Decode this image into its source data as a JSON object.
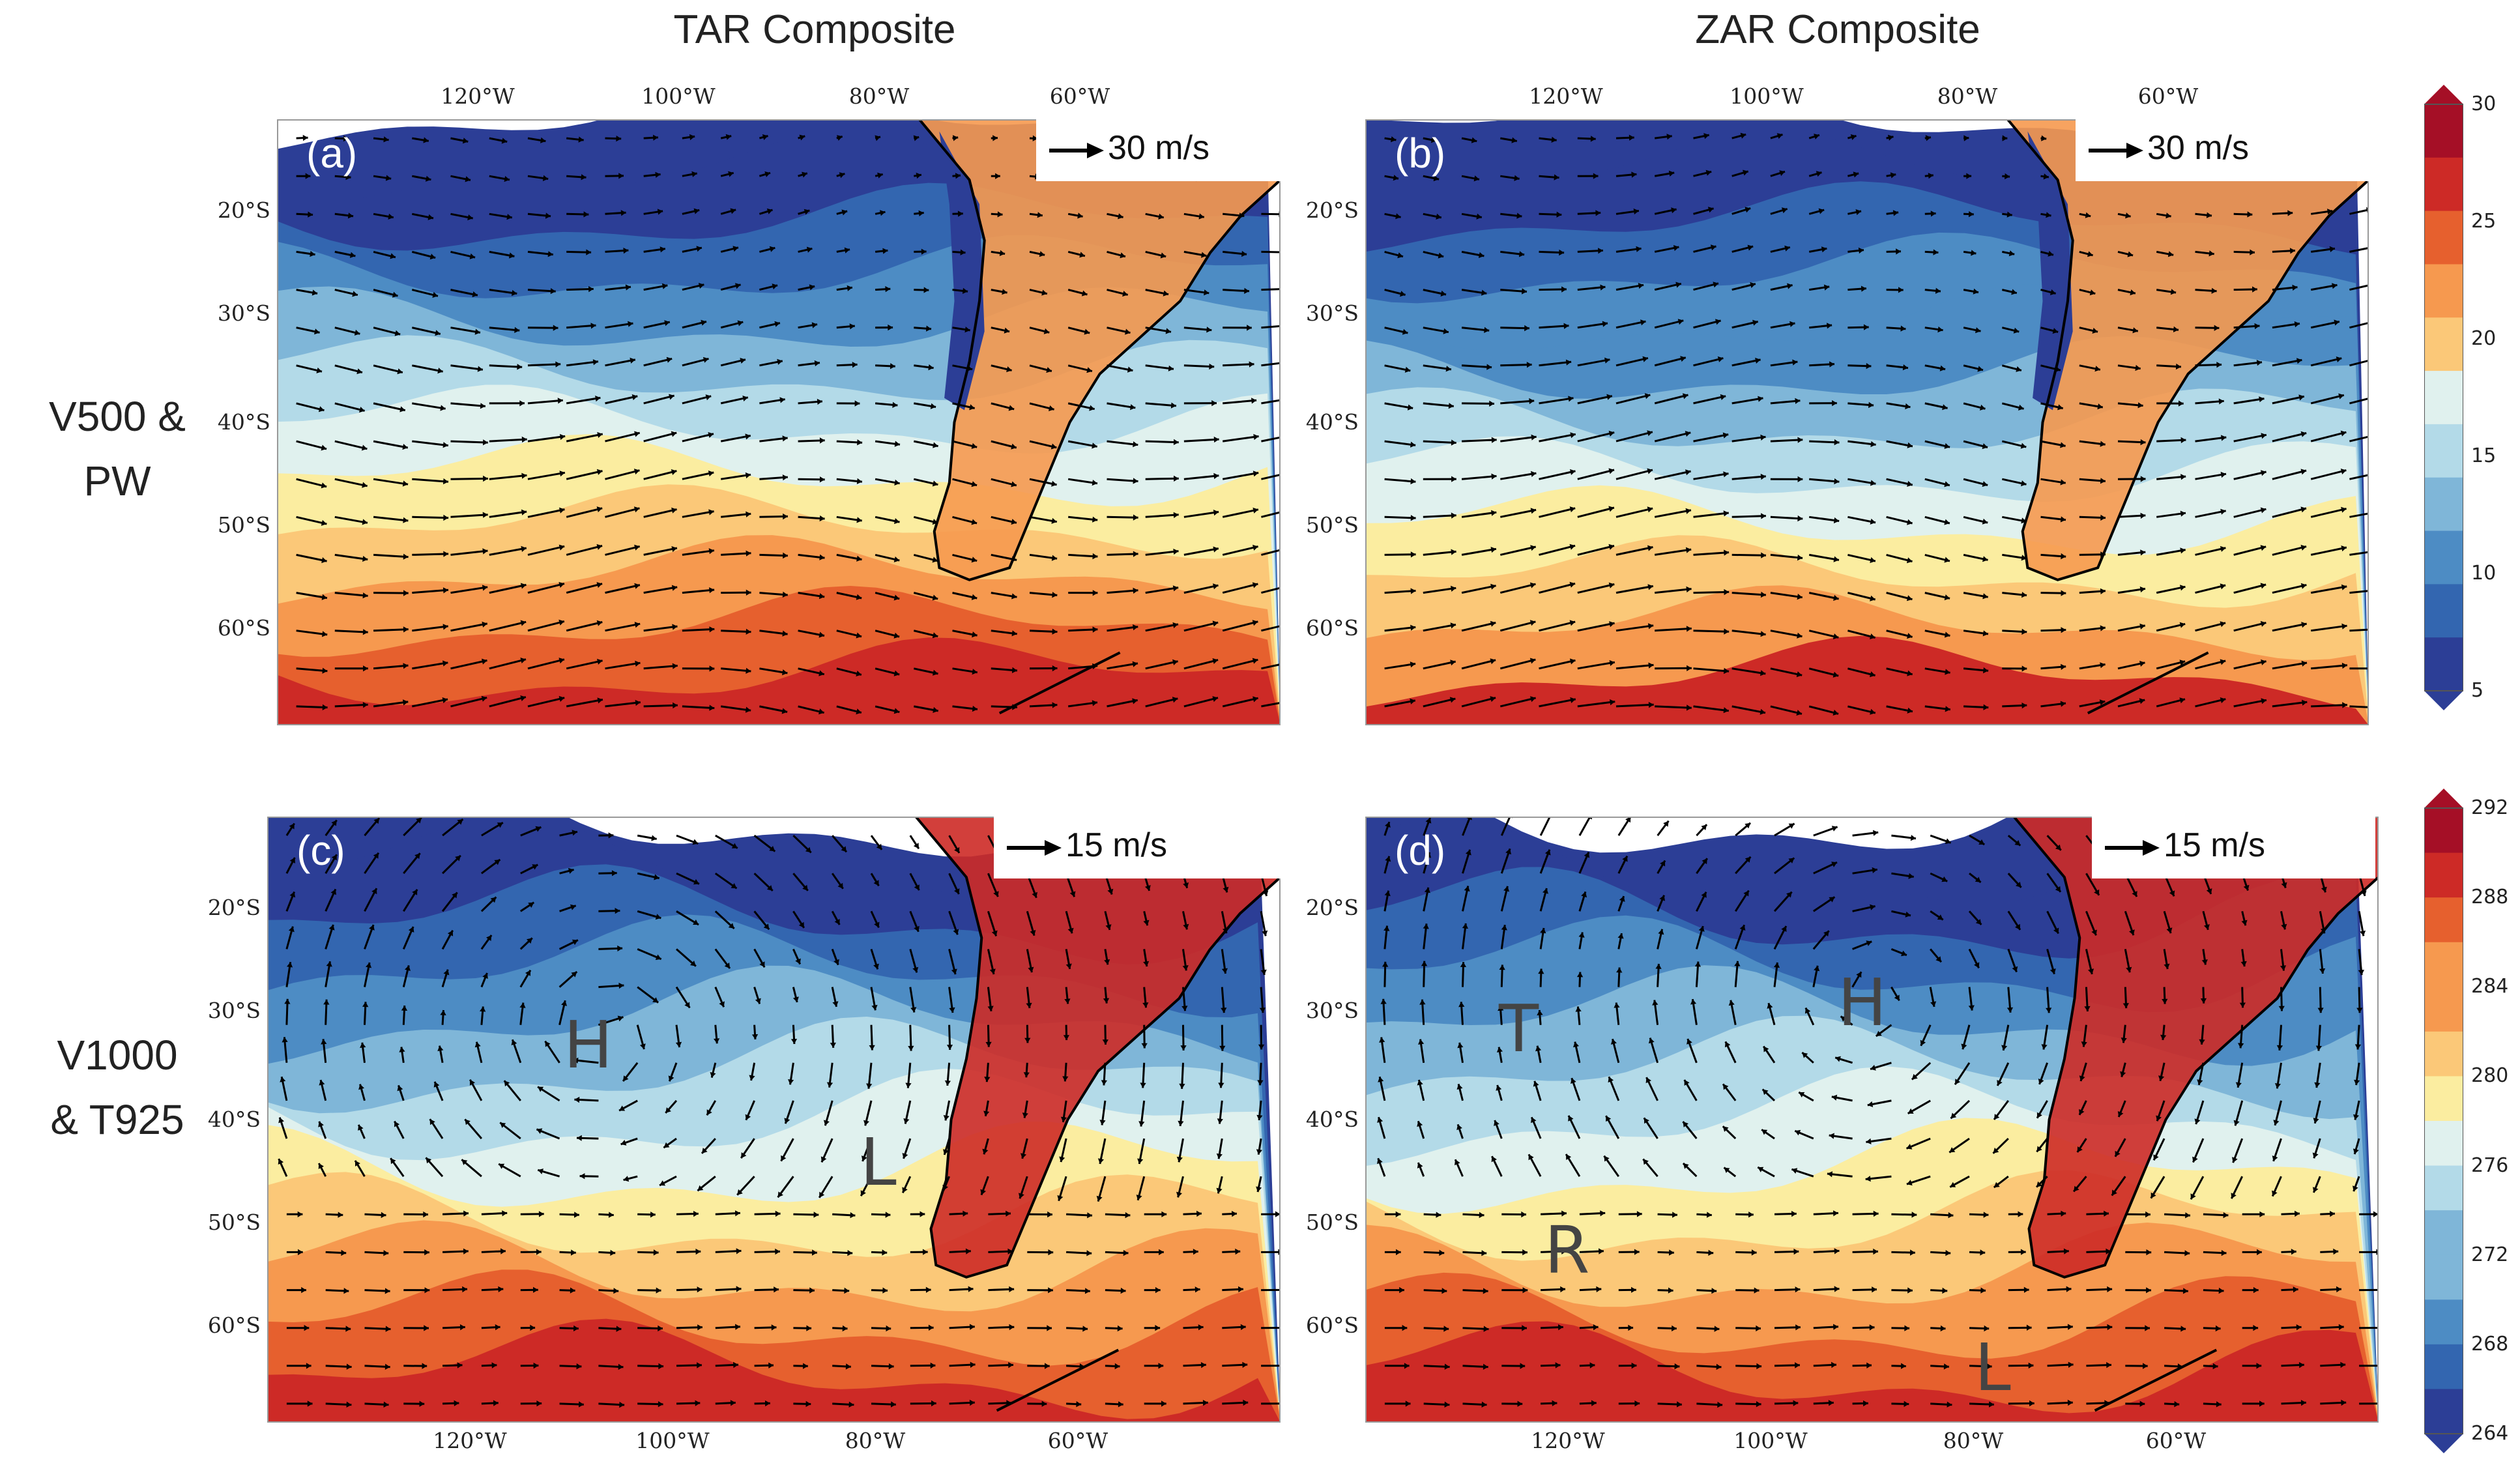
{
  "columns": [
    "TAR Composite",
    "ZAR Composite"
  ],
  "rows": [
    {
      "line1": "V500 &",
      "line2": "PW"
    },
    {
      "line1": "V1000",
      "line2": "& T925"
    }
  ],
  "lat_ticks": [
    "20°S",
    "30°S",
    "40°S",
    "50°S",
    "60°S"
  ],
  "lon_ticks": [
    "120°W",
    "100°W",
    "80°W",
    "60°W"
  ],
  "panels": [
    {
      "tag": "(a)",
      "ref": "30 m/s"
    },
    {
      "tag": "(b)",
      "ref": "30 m/s"
    },
    {
      "tag": "(c)",
      "ref": "15 m/s"
    },
    {
      "tag": "(d)",
      "ref": "15 m/s"
    }
  ],
  "labels_c": [
    "H",
    "L"
  ],
  "labels_d": [
    "T",
    "H",
    "R",
    "L"
  ],
  "colorbar_top": {
    "ticks": [
      "30",
      "25",
      "20",
      "15",
      "10",
      "5"
    ],
    "range": [
      5,
      30
    ]
  },
  "colorbar_bottom": {
    "ticks": [
      "292",
      "288",
      "284",
      "280",
      "276",
      "272",
      "268",
      "264"
    ],
    "range": [
      264,
      292
    ]
  },
  "colors": {
    "c0": "#2c3e96",
    "c1": "#3366b0",
    "c2": "#4d8cc4",
    "c3": "#7fb6d8",
    "c4": "#b3dae8",
    "c5": "#e0f1ee",
    "c6": "#fbeda0",
    "c7": "#fbc878",
    "c8": "#f6994f",
    "c9": "#e6602e",
    "c10": "#cd2a26",
    "c11": "#a50f26"
  }
}
